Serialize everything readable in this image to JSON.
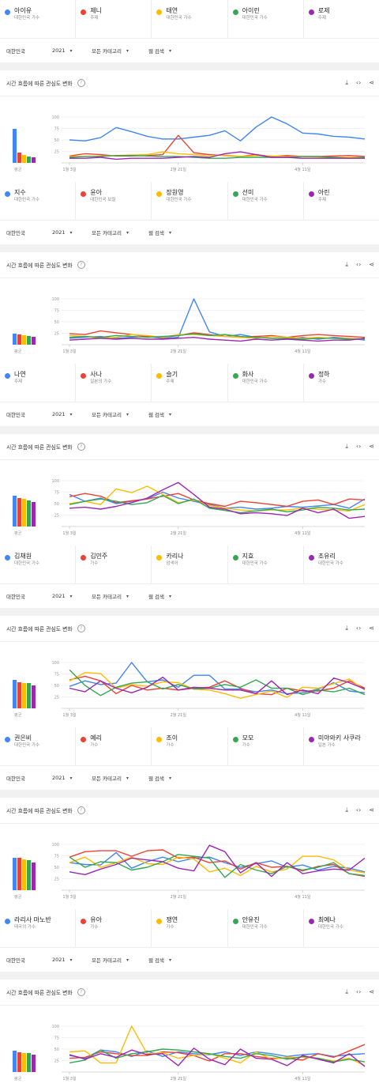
{
  "filters": {
    "region": "대한민국",
    "year": "2021",
    "category": "모든 카테고리",
    "search": "웹 검색"
  },
  "card_title": "시간 흐름에 따른 관심도 변화",
  "help_label": "?",
  "avg_label": "평균",
  "colors": [
    "#4285f4",
    "#ea4335",
    "#fbbc04",
    "#34a853",
    "#9c27b0"
  ],
  "icons": [
    "download-icon",
    "embed-icon",
    "share-icon"
  ],
  "top_legend": [
    {
      "name": "아이유",
      "sub": "대한민국 가수"
    },
    {
      "name": "제니",
      "sub": "주제"
    },
    {
      "name": "태연",
      "sub": "대한민국 가수"
    },
    {
      "name": "아이린",
      "sub": "대한민국 가수"
    },
    {
      "name": "로제",
      "sub": "주제"
    }
  ],
  "chart_data": [
    {
      "type": "line",
      "ylim": [
        0,
        100
      ],
      "y_ticks": [
        "100",
        "75",
        "50",
        "25"
      ],
      "x_ticks": [
        "1월 3일",
        "2월 21일",
        "4월 11일"
      ],
      "averages": [
        62,
        18,
        14,
        12,
        10
      ],
      "series": [
        {
          "values": [
            50,
            48,
            55,
            77,
            68,
            58,
            52,
            52,
            56,
            60,
            70,
            48,
            78,
            100,
            85,
            65,
            63,
            58,
            56,
            52
          ]
        },
        {
          "values": [
            15,
            20,
            18,
            15,
            15,
            16,
            18,
            60,
            22,
            18,
            16,
            14,
            18,
            14,
            16,
            14,
            14,
            15,
            16,
            14
          ]
        },
        {
          "values": [
            14,
            14,
            15,
            16,
            17,
            18,
            24,
            20,
            18,
            16,
            17,
            14,
            16,
            15,
            14,
            14,
            13,
            12,
            12,
            12
          ]
        },
        {
          "values": [
            12,
            14,
            14,
            16,
            16,
            15,
            14,
            14,
            12,
            10,
            10,
            12,
            12,
            12,
            12,
            14,
            14,
            12,
            10,
            12
          ]
        },
        {
          "values": [
            10,
            10,
            12,
            8,
            10,
            10,
            10,
            12,
            14,
            12,
            20,
            24,
            18,
            12,
            12,
            10,
            10,
            10,
            10,
            10
          ]
        }
      ],
      "legend": [
        {
          "name": "지수",
          "sub": "대한민국 가수"
        },
        {
          "name": "윤아",
          "sub": "대한민국 보컬"
        },
        {
          "name": "장원영",
          "sub": "대한민국 가수"
        },
        {
          "name": "선미",
          "sub": "대한민국 가수"
        },
        {
          "name": "아린",
          "sub": "주제"
        }
      ]
    },
    {
      "type": "line",
      "ylim": [
        0,
        100
      ],
      "y_ticks": [
        "100",
        "75",
        "50",
        "25"
      ],
      "x_ticks": [
        "1월 3일",
        "2월 21일",
        "4월 11일"
      ],
      "averages": [
        20,
        19,
        17,
        16,
        14
      ],
      "series": [
        {
          "values": [
            14,
            16,
            18,
            14,
            16,
            18,
            14,
            16,
            100,
            28,
            18,
            22,
            16,
            14,
            14,
            16,
            12,
            16,
            14,
            10
          ]
        },
        {
          "values": [
            24,
            22,
            30,
            26,
            22,
            18,
            16,
            20,
            26,
            22,
            18,
            16,
            18,
            20,
            16,
            20,
            22,
            20,
            18,
            16
          ]
        },
        {
          "values": [
            20,
            18,
            14,
            16,
            22,
            20,
            16,
            22,
            22,
            20,
            18,
            16,
            14,
            18,
            16,
            14,
            16,
            14,
            14,
            12
          ]
        },
        {
          "values": [
            16,
            18,
            16,
            20,
            18,
            16,
            18,
            20,
            24,
            20,
            22,
            18,
            16,
            14,
            14,
            12,
            14,
            14,
            12,
            12
          ]
        },
        {
          "values": [
            10,
            12,
            14,
            12,
            14,
            12,
            12,
            14,
            16,
            12,
            10,
            8,
            12,
            10,
            12,
            10,
            8,
            10,
            10,
            14
          ]
        }
      ],
      "legend": [
        {
          "name": "나연",
          "sub": "주제"
        },
        {
          "name": "사나",
          "sub": "일본의 가수"
        },
        {
          "name": "슬기",
          "sub": "주제"
        },
        {
          "name": "화사",
          "sub": "대한민국 가수"
        },
        {
          "name": "정하",
          "sub": "가수"
        }
      ]
    },
    {
      "type": "line",
      "ylim": [
        0,
        100
      ],
      "y_ticks": [
        "100",
        "75",
        "50",
        "25"
      ],
      "x_ticks": [
        "1월 3일",
        "2월 21일",
        "4월 11일"
      ],
      "averages": [
        56,
        52,
        50,
        47,
        45
      ],
      "series": [
        {
          "values": [
            70,
            55,
            62,
            50,
            55,
            60,
            75,
            62,
            55,
            48,
            40,
            42,
            38,
            40,
            44,
            42,
            45,
            48,
            40,
            60
          ]
        },
        {
          "values": [
            65,
            72,
            66,
            52,
            56,
            60,
            66,
            72,
            58,
            50,
            44,
            55,
            52,
            48,
            44,
            55,
            58,
            48,
            60,
            58
          ]
        },
        {
          "values": [
            50,
            55,
            48,
            82,
            74,
            88,
            70,
            52,
            58,
            46,
            40,
            36,
            34,
            36,
            36,
            40,
            38,
            36,
            34,
            48
          ]
        },
        {
          "values": [
            48,
            55,
            60,
            55,
            48,
            52,
            68,
            50,
            60,
            40,
            35,
            30,
            34,
            38,
            32,
            36,
            42,
            40,
            36,
            38
          ]
        },
        {
          "values": [
            40,
            42,
            38,
            44,
            52,
            62,
            80,
            96,
            70,
            42,
            38,
            28,
            30,
            28,
            24,
            40,
            30,
            38,
            18,
            22
          ]
        }
      ],
      "legend": [
        {
          "name": "김채원",
          "sub": "대한민국 가수"
        },
        {
          "name": "김민주",
          "sub": "가수"
        },
        {
          "name": "카리나",
          "sub": "엄색어"
        },
        {
          "name": "지효",
          "sub": "대한민국 가수"
        },
        {
          "name": "조유리",
          "sub": "대한민국 가수"
        }
      ]
    },
    {
      "type": "line",
      "ylim": [
        0,
        100
      ],
      "y_ticks": [
        "100",
        "75",
        "50",
        "25"
      ],
      "x_ticks": [
        "1월 3일",
        "2월 21일",
        "4월 11일"
      ],
      "averages": [
        52,
        47,
        46,
        46,
        42
      ],
      "series": [
        {
          "values": [
            48,
            60,
            52,
            55,
            100,
            58,
            62,
            46,
            72,
            72,
            42,
            42,
            36,
            40,
            32,
            34,
            42,
            56,
            38,
            34
          ]
        },
        {
          "values": [
            62,
            70,
            60,
            32,
            50,
            40,
            44,
            40,
            44,
            46,
            60,
            44,
            32,
            30,
            44,
            38,
            38,
            44,
            60,
            44
          ]
        },
        {
          "values": [
            60,
            78,
            76,
            44,
            52,
            48,
            58,
            56,
            42,
            40,
            32,
            22,
            30,
            38,
            24,
            46,
            44,
            54,
            64,
            40
          ]
        },
        {
          "values": [
            84,
            50,
            28,
            46,
            55,
            58,
            42,
            52,
            42,
            44,
            52,
            46,
            62,
            44,
            44,
            30,
            40,
            36,
            44,
            30
          ]
        },
        {
          "values": [
            44,
            36,
            60,
            44,
            34,
            46,
            68,
            40,
            46,
            44,
            40,
            40,
            32,
            60,
            30,
            40,
            32,
            66,
            56,
            42
          ]
        }
      ],
      "legend": [
        {
          "name": "권은비",
          "sub": "대한민국 가수"
        },
        {
          "name": "예리",
          "sub": "가수"
        },
        {
          "name": "조이",
          "sub": "가수"
        },
        {
          "name": "모모",
          "sub": "가수"
        },
        {
          "name": "미야와키 사쿠라",
          "sub": "일본 가수"
        }
      ]
    },
    {
      "type": "line",
      "ylim": [
        0,
        100
      ],
      "y_ticks": [
        "100",
        "75",
        "50",
        "25"
      ],
      "x_ticks": [
        "1월 3일",
        "2월 21일",
        "4월 11일"
      ],
      "averages": [
        59,
        58,
        56,
        54,
        50
      ],
      "series": [
        {
          "values": [
            60,
            56,
            55,
            82,
            48,
            62,
            72,
            62,
            70,
            72,
            60,
            50,
            58,
            64,
            50,
            55,
            44,
            52,
            48,
            40
          ]
        },
        {
          "values": [
            72,
            84,
            86,
            86,
            74,
            86,
            88,
            70,
            72,
            60,
            64,
            46,
            60,
            50,
            52,
            42,
            52,
            56,
            36,
            30
          ]
        },
        {
          "values": [
            60,
            72,
            50,
            60,
            72,
            58,
            56,
            72,
            68,
            40,
            48,
            32,
            52,
            40,
            46,
            74,
            74,
            66,
            44,
            38
          ]
        },
        {
          "values": [
            72,
            50,
            62,
            60,
            44,
            50,
            62,
            78,
            74,
            70,
            28,
            56,
            44,
            36,
            52,
            44,
            50,
            60,
            36,
            32
          ]
        },
        {
          "values": [
            40,
            34,
            46,
            56,
            70,
            66,
            62,
            48,
            42,
            98,
            84,
            38,
            60,
            30,
            60,
            36,
            42,
            46,
            44,
            70
          ]
        }
      ],
      "legend": [
        {
          "name": "라리사 마노반",
          "sub": "태국의 가수"
        },
        {
          "name": "유아",
          "sub": "가수"
        },
        {
          "name": "쟁연",
          "sub": "가수"
        },
        {
          "name": "안유진",
          "sub": "대한민국 가수"
        },
        {
          "name": "최예나",
          "sub": "대한민국 가수"
        }
      ]
    },
    {
      "type": "line",
      "ylim": [
        0,
        100
      ],
      "y_ticks": [
        "100",
        "75",
        "50",
        "25"
      ],
      "x_ticks": [
        "1월 3일",
        "2월 21일",
        "4월 11일"
      ],
      "averages": [
        38,
        36,
        35,
        34,
        31
      ],
      "series": [
        {
          "values": [
            36,
            30,
            48,
            44,
            34,
            46,
            34,
            44,
            40,
            38,
            44,
            36,
            44,
            40,
            34,
            38,
            40,
            34,
            38,
            40
          ]
        },
        {
          "values": [
            30,
            32,
            44,
            40,
            36,
            36,
            44,
            42,
            36,
            24,
            40,
            40,
            34,
            30,
            30,
            26,
            40,
            32,
            46,
            60
          ]
        },
        {
          "values": [
            44,
            46,
            20,
            20,
            100,
            40,
            42,
            30,
            36,
            40,
            30,
            20,
            44,
            28,
            32,
            32,
            30,
            24,
            30,
            14
          ]
        },
        {
          "values": [
            20,
            26,
            48,
            30,
            40,
            44,
            50,
            48,
            44,
            40,
            34,
            30,
            40,
            36,
            28,
            34,
            30,
            22,
            28,
            22
          ]
        },
        {
          "values": [
            38,
            28,
            40,
            32,
            48,
            38,
            40,
            14,
            52,
            28,
            16,
            50,
            30,
            28,
            14,
            36,
            28,
            20,
            40,
            12
          ]
        }
      ],
      "legend": []
    }
  ]
}
